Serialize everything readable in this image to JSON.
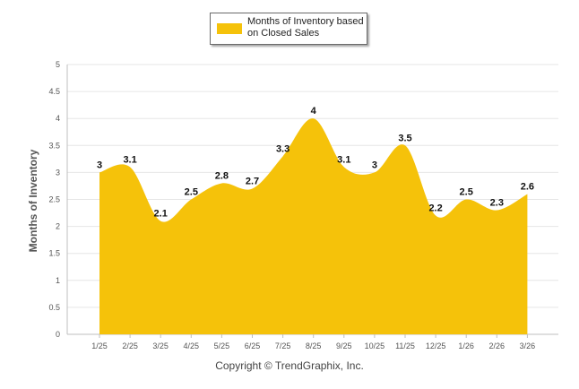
{
  "chart_data": {
    "type": "area",
    "title": "",
    "ylabel": "Months of Inventory",
    "xlabel": "",
    "categories": [
      "1/25",
      "2/25",
      "3/25",
      "4/25",
      "5/25",
      "6/25",
      "7/25",
      "8/25",
      "9/25",
      "10/25",
      "11/25",
      "12/25",
      "1/26",
      "2/26",
      "3/26"
    ],
    "series": [
      {
        "name": "Months of Inventory based on Closed Sales",
        "values": [
          3,
          3.1,
          2.1,
          2.5,
          2.8,
          2.7,
          3.3,
          4,
          3.1,
          3,
          3.5,
          2.2,
          2.5,
          2.3,
          2.6
        ]
      }
    ],
    "data_labels": [
      "3",
      "3.1",
      "2.1",
      "2.5",
      "2.8",
      "2.7",
      "3.3",
      "4",
      "3.1",
      "3",
      "3.5",
      "2.2",
      "2.5",
      "2.3",
      "2.6"
    ],
    "ylim": [
      0,
      5
    ],
    "yticks": [
      "0",
      "0.5",
      "1",
      "1.5",
      "2",
      "2.5",
      "3",
      "3.5",
      "4",
      "4.5",
      "5"
    ],
    "grid": true,
    "legend_position": "top-center",
    "color": "#f5c20a"
  },
  "legend": {
    "label_line1": "Months of Inventory based",
    "label_line2": "on Closed Sales"
  },
  "footer": {
    "copyright": "Copyright © TrendGraphix, Inc."
  }
}
